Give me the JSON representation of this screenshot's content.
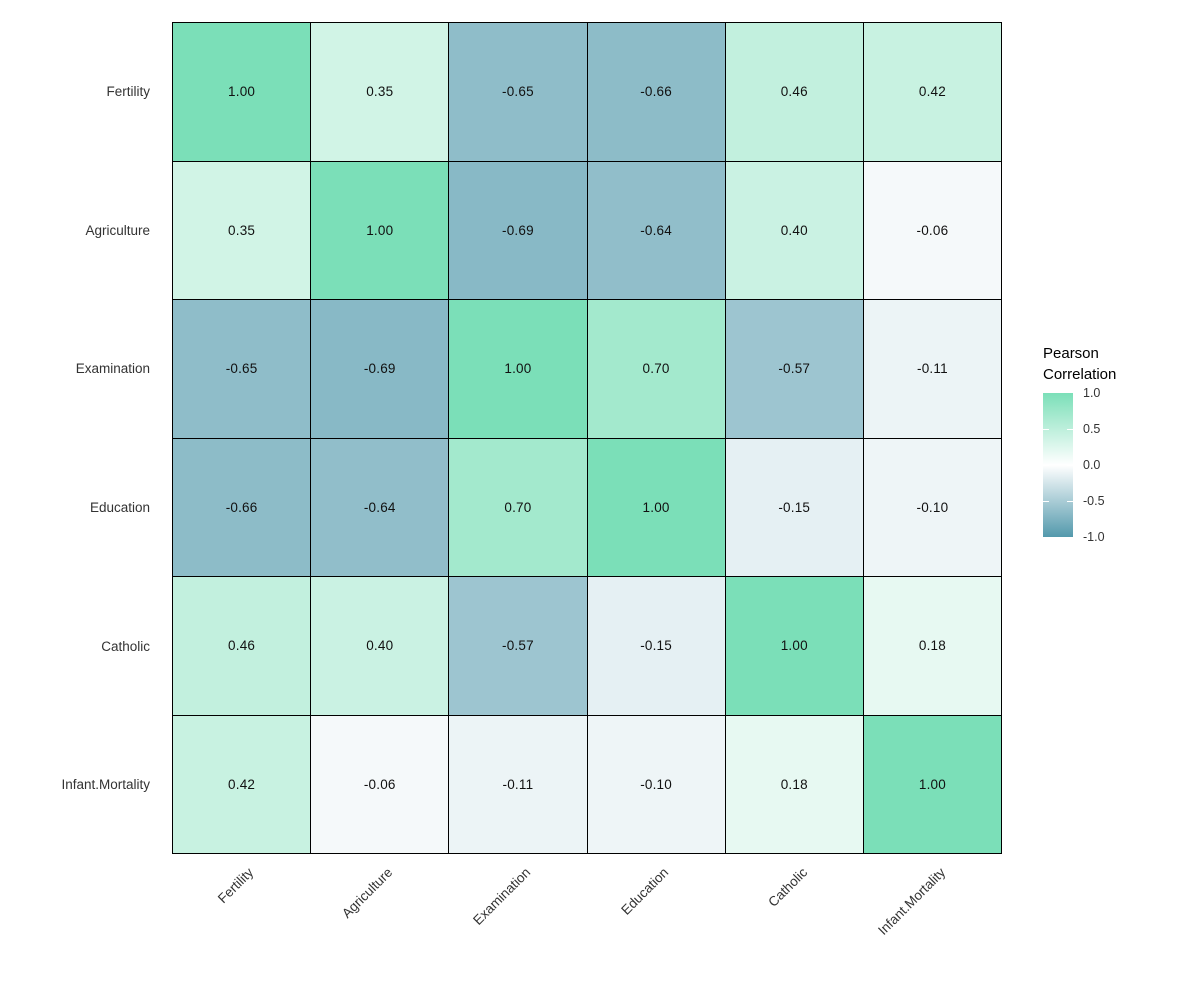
{
  "chart_data": {
    "type": "heatmap",
    "title": "",
    "variables": [
      "Fertility",
      "Agriculture",
      "Examination",
      "Education",
      "Catholic",
      "Infant.Mortality"
    ],
    "matrix": [
      [
        1.0,
        0.35,
        -0.65,
        -0.66,
        0.46,
        0.42
      ],
      [
        0.35,
        1.0,
        -0.69,
        -0.64,
        0.4,
        -0.06
      ],
      [
        -0.65,
        -0.69,
        1.0,
        0.7,
        -0.57,
        -0.11
      ],
      [
        -0.66,
        -0.64,
        0.7,
        1.0,
        -0.15,
        -0.1
      ],
      [
        0.46,
        0.4,
        -0.57,
        -0.15,
        1.0,
        0.18
      ],
      [
        0.42,
        -0.06,
        -0.11,
        -0.1,
        0.18,
        1.0
      ]
    ],
    "value_decimals": 2,
    "xlabel": "",
    "ylabel": "",
    "grid": true,
    "legend": {
      "title": "Pearson\nCorrelation",
      "position": "right",
      "ticks": [
        "1.0",
        "0.5",
        "0.0",
        "-0.5",
        "-1.0"
      ],
      "range": [
        -1.0,
        1.0
      ]
    },
    "colors": {
      "high": "#7BDFB8",
      "mid": "#FFFFFF",
      "low": "#5399AC",
      "grid_line": "#000000",
      "cell_text": "#111111",
      "axis_text": "#333333",
      "legend_title_text": "#000000",
      "background": "#FFFFFF"
    }
  }
}
